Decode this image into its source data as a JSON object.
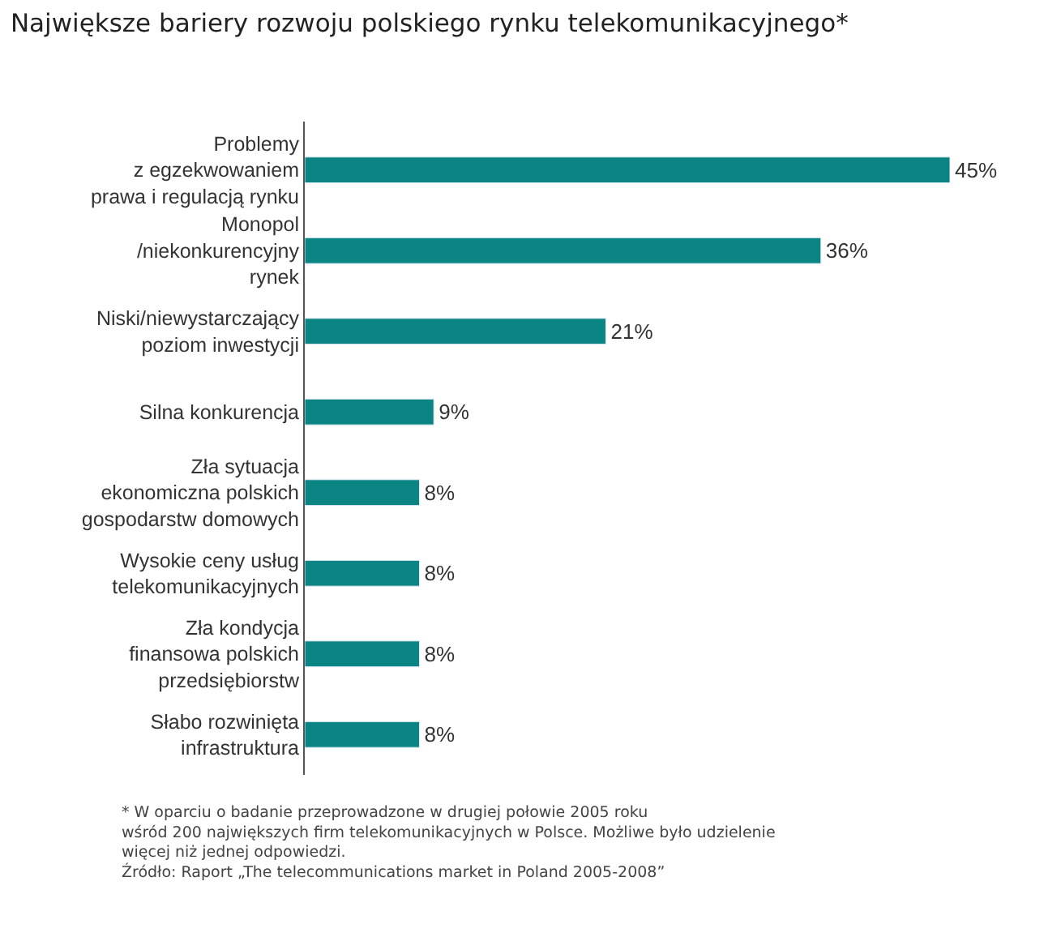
{
  "chart_data": {
    "type": "bar",
    "orientation": "horizontal",
    "title": "Największe bariery rozwoju polskiego rynku telekomunikacyjnego*",
    "categories": [
      "Problemy\nz egzekwowaniem\nprawa i regulacją rynku",
      "Monopol\n/niekonkurencyjny\nrynek",
      "Niski/niewystarczający\npoziom inwestycji",
      "Silna konkurencja",
      "Zła sytuacja\nekonomiczna polskich\ngospodarstw domowych",
      "Wysokie ceny usług\ntelekomunikacyjnych",
      "Zła kondycja\nfinansowa polskich\nprzedsiębiorstw",
      "Słabo rozwinięta\ninfrastruktura"
    ],
    "values": [
      45,
      36,
      21,
      9,
      8,
      8,
      8,
      8
    ],
    "value_labels": [
      "45%",
      "36%",
      "21%",
      "9%",
      "8%",
      "8%",
      "8%",
      "8%"
    ],
    "color": "#0b8484",
    "annotations": [
      "* W oparciu o badanie przeprowadzone w drugiej połowie 2005 roku\nwśród 200 największych firm telekomunikacyjnych w Polsce. Możliwe było udzielenie\nwięcej niż jednej odpowiedzi.\nŹródło: Raport „The telecommunications market in Poland 2005-2008”"
    ]
  }
}
